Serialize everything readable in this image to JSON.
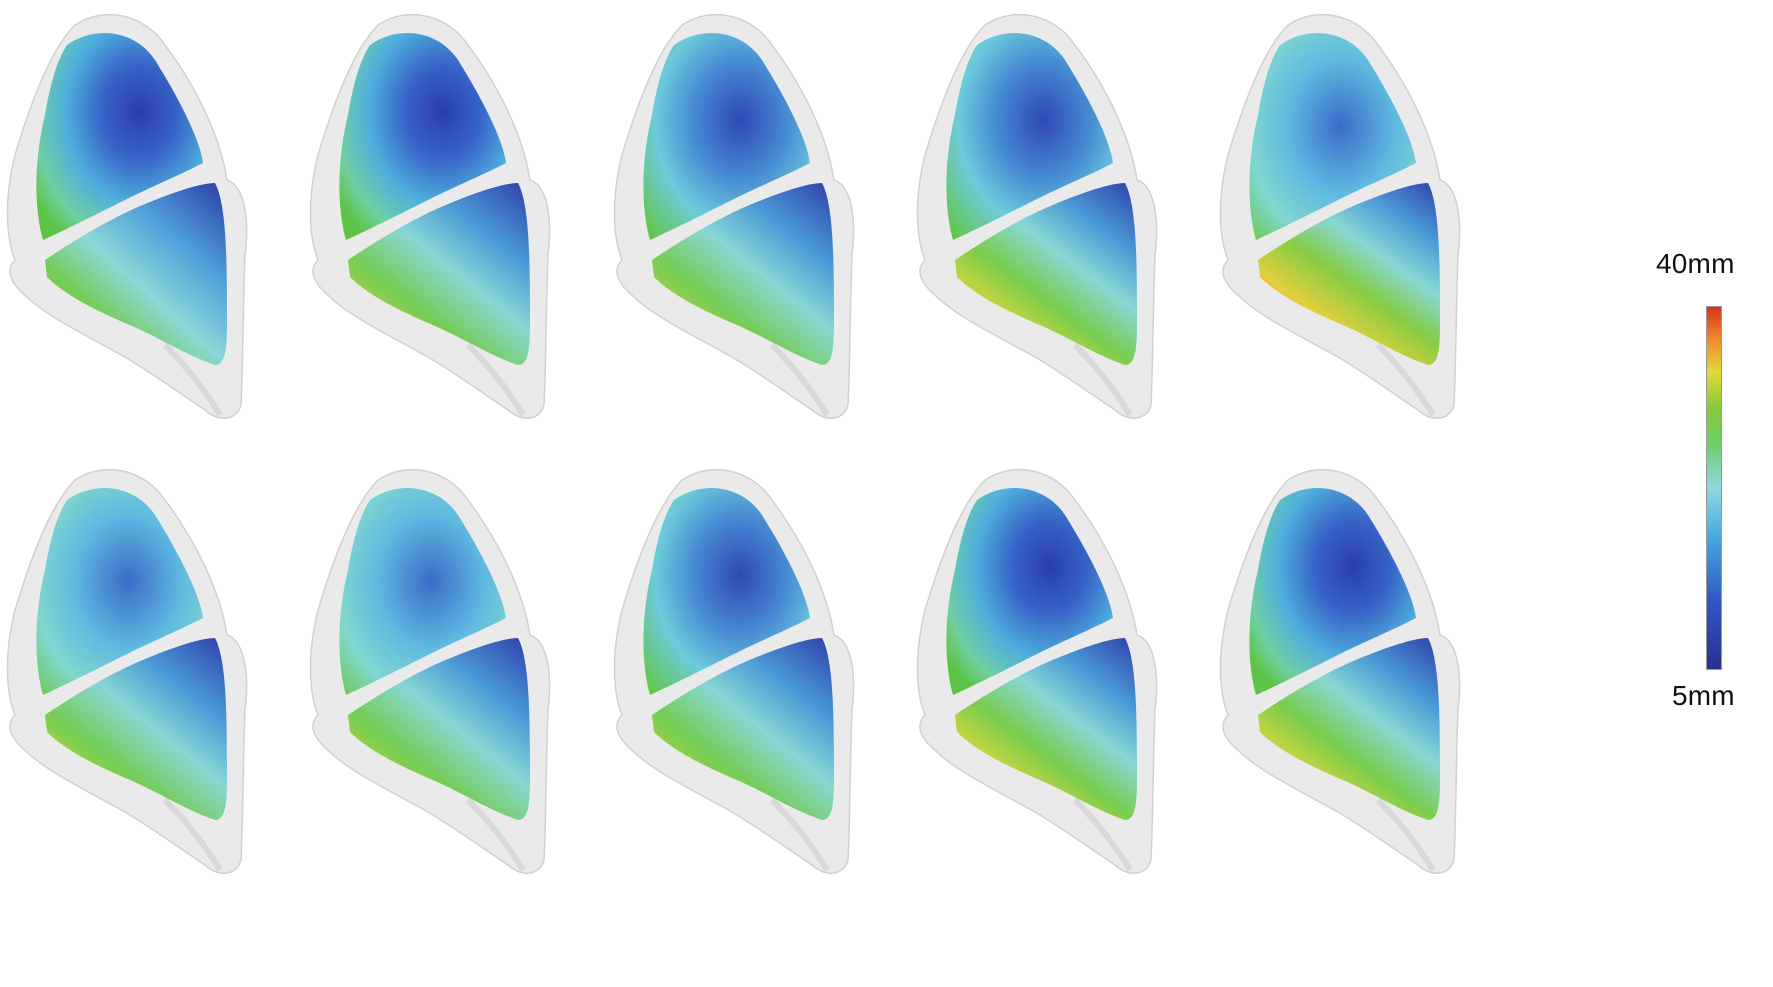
{
  "legend": {
    "max_label": "40mm",
    "min_label": "5mm",
    "max_value_mm": 40,
    "min_value_mm": 5,
    "colormap": [
      "#2a2f8f",
      "#2f55c2",
      "#46a7de",
      "#8fd9e0",
      "#6fce6a",
      "#86c93a",
      "#e2d93b",
      "#f08a2c",
      "#d8321c"
    ]
  },
  "panels": {
    "rows": 2,
    "columns": 5,
    "shell_color": "#e7e7e7",
    "shell_edge_color": "#c9c9c9"
  }
}
